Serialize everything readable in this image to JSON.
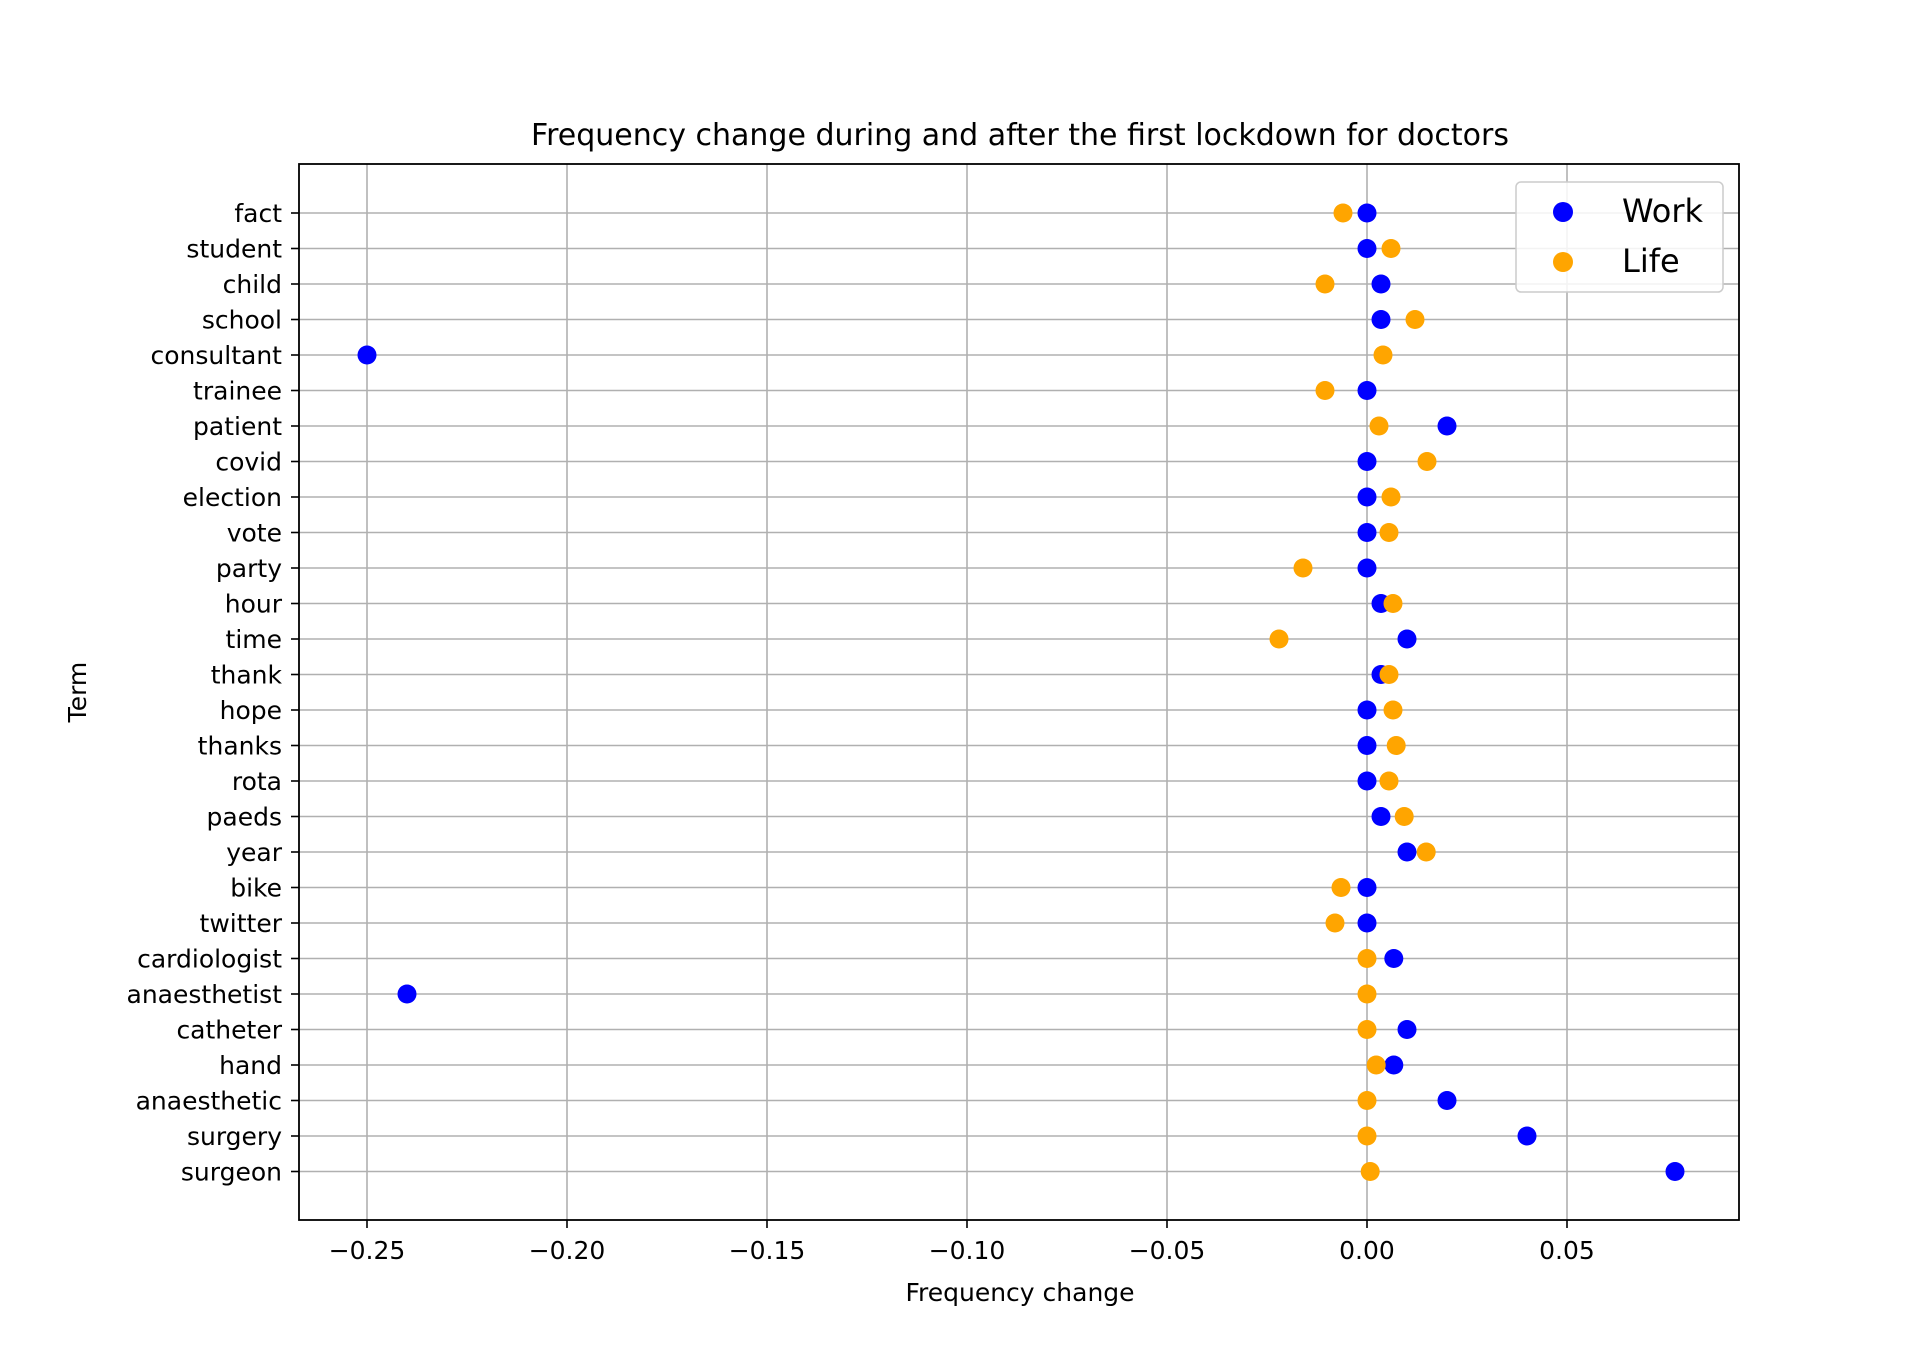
{
  "chart_data": {
    "type": "scatter",
    "title": "Frequency change during and after the first lockdown for doctors",
    "xlabel": "Frequency change",
    "ylabel": "Term",
    "xlim": [
      -0.267,
      0.093
    ],
    "xticks": [
      -0.25,
      -0.2,
      -0.15,
      -0.1,
      -0.05,
      0.0,
      0.05
    ],
    "xtick_labels": [
      "−0.25",
      "−0.20",
      "−0.15",
      "−0.10",
      "−0.05",
      "0.00",
      "0.05"
    ],
    "grid": true,
    "legend_position": "top-right",
    "categories": [
      "fact",
      "student",
      "child",
      "school",
      "consultant",
      "trainee",
      "patient",
      "covid",
      "election",
      "vote",
      "party",
      "hour",
      "time",
      "thank",
      "hope",
      "thanks",
      "rota",
      "paeds",
      "year",
      "bike",
      "twitter",
      "cardiologist",
      "anaesthetist",
      "catheter",
      "hand",
      "anaesthetic",
      "surgery",
      "surgeon"
    ],
    "series": [
      {
        "name": "Work",
        "color": "#0000ff",
        "values": [
          0.0,
          0.0,
          0.0035,
          0.0035,
          -0.25,
          0.0,
          0.02,
          0.0,
          0.0,
          0.0,
          0.0,
          0.0035,
          0.01,
          0.0035,
          0.0,
          0.0,
          0.0,
          0.0035,
          0.01,
          0.0,
          0.0,
          0.0067,
          -0.24,
          0.01,
          0.0067,
          0.02,
          0.04,
          0.077
        ]
      },
      {
        "name": "Life",
        "color": "#ffa500",
        "values": [
          -0.006,
          0.006,
          -0.0105,
          0.012,
          0.004,
          -0.0105,
          0.003,
          0.015,
          0.006,
          0.0055,
          -0.016,
          0.0065,
          -0.022,
          0.0055,
          0.0065,
          0.0073,
          0.0055,
          0.0093,
          0.0148,
          -0.0065,
          -0.008,
          0.0,
          0.0,
          0.0,
          0.0023,
          0.0,
          0.0,
          0.0008
        ]
      }
    ]
  }
}
